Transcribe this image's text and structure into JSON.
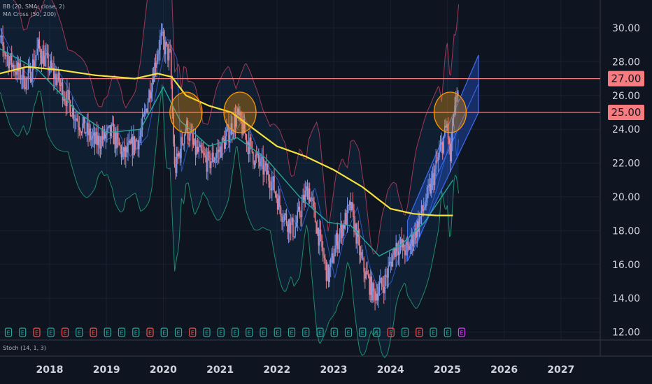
{
  "indicators": {
    "bb": "BB (20, SMA, close, 2)",
    "ma_cross": "MA Cross (50, 200)",
    "stoch": "Stoch (14, 1, 3)"
  },
  "chart_data": {
    "type": "candlestick",
    "title": "",
    "x_ticks": [
      "2018",
      "2019",
      "2020",
      "2021",
      "2022",
      "2023",
      "2024",
      "2025",
      "2026",
      "2027"
    ],
    "y_ticks": [
      "12.00",
      "14.00",
      "16.00",
      "18.00",
      "20.00",
      "22.00",
      "24.00",
      "26.00",
      "28.00",
      "30.00"
    ],
    "ylim": [
      12,
      31.5
    ],
    "horizontal_levels": [
      {
        "label": "27.00",
        "value": 27.0
      },
      {
        "label": "25.00",
        "value": 25.0
      }
    ],
    "price_path": [
      {
        "t": 2017.0,
        "v": 30.0
      },
      {
        "t": 2017.3,
        "v": 28.0
      },
      {
        "t": 2017.6,
        "v": 26.8
      },
      {
        "t": 2017.8,
        "v": 28.8
      },
      {
        "t": 2018.2,
        "v": 26.5
      },
      {
        "t": 2018.5,
        "v": 24.5
      },
      {
        "t": 2018.8,
        "v": 23.2
      },
      {
        "t": 2019.1,
        "v": 23.8
      },
      {
        "t": 2019.3,
        "v": 22.4
      },
      {
        "t": 2019.6,
        "v": 23.6
      },
      {
        "t": 2019.8,
        "v": 27.0
      },
      {
        "t": 2019.95,
        "v": 29.4
      },
      {
        "t": 2020.12,
        "v": 28.2
      },
      {
        "t": 2020.2,
        "v": 21.5
      },
      {
        "t": 2020.4,
        "v": 24.2
      },
      {
        "t": 2020.55,
        "v": 22.8
      },
      {
        "t": 2020.8,
        "v": 22.0
      },
      {
        "t": 2021.0,
        "v": 22.8
      },
      {
        "t": 2021.3,
        "v": 24.8
      },
      {
        "t": 2021.6,
        "v": 22.4
      },
      {
        "t": 2021.9,
        "v": 21.0
      },
      {
        "t": 2022.1,
        "v": 19.0
      },
      {
        "t": 2022.3,
        "v": 18.0
      },
      {
        "t": 2022.55,
        "v": 20.6
      },
      {
        "t": 2022.75,
        "v": 17.5
      },
      {
        "t": 2022.9,
        "v": 15.2
      },
      {
        "t": 2023.05,
        "v": 17.4
      },
      {
        "t": 2023.3,
        "v": 19.4
      },
      {
        "t": 2023.5,
        "v": 16.0
      },
      {
        "t": 2023.7,
        "v": 14.2
      },
      {
        "t": 2023.9,
        "v": 15.0
      },
      {
        "t": 2024.1,
        "v": 17.2
      },
      {
        "t": 2024.3,
        "v": 16.8
      },
      {
        "t": 2024.5,
        "v": 18.5
      },
      {
        "t": 2024.7,
        "v": 20.5
      },
      {
        "t": 2024.9,
        "v": 23.0
      },
      {
        "t": 2025.0,
        "v": 24.3
      },
      {
        "t": 2025.05,
        "v": 22.0
      },
      {
        "t": 2025.12,
        "v": 25.3
      },
      {
        "t": 2025.2,
        "v": 25.8
      }
    ],
    "ma200": [
      {
        "t": 2017.0,
        "v": 27.2
      },
      {
        "t": 2017.6,
        "v": 27.7
      },
      {
        "t": 2018.2,
        "v": 27.5
      },
      {
        "t": 2018.8,
        "v": 27.2
      },
      {
        "t": 2019.5,
        "v": 27.0
      },
      {
        "t": 2019.9,
        "v": 27.3
      },
      {
        "t": 2020.15,
        "v": 27.1
      },
      {
        "t": 2020.4,
        "v": 26.0
      },
      {
        "t": 2020.8,
        "v": 25.4
      },
      {
        "t": 2021.2,
        "v": 25.0
      },
      {
        "t": 2021.6,
        "v": 24.0
      },
      {
        "t": 2022.0,
        "v": 23.0
      },
      {
        "t": 2022.5,
        "v": 22.4
      },
      {
        "t": 2023.0,
        "v": 21.6
      },
      {
        "t": 2023.5,
        "v": 20.6
      },
      {
        "t": 2024.0,
        "v": 19.3
      },
      {
        "t": 2024.4,
        "v": 19.0
      },
      {
        "t": 2024.8,
        "v": 18.9
      },
      {
        "t": 2025.1,
        "v": 18.9
      }
    ],
    "ma50": [
      {
        "t": 2017.0,
        "v": 29.0
      },
      {
        "t": 2017.8,
        "v": 27.5
      },
      {
        "t": 2018.5,
        "v": 25.0
      },
      {
        "t": 2019.0,
        "v": 23.8
      },
      {
        "t": 2019.6,
        "v": 24.0
      },
      {
        "t": 2020.0,
        "v": 26.5
      },
      {
        "t": 2020.3,
        "v": 24.5
      },
      {
        "t": 2020.8,
        "v": 23.0
      },
      {
        "t": 2021.3,
        "v": 23.5
      },
      {
        "t": 2021.8,
        "v": 22.3
      },
      {
        "t": 2022.4,
        "v": 20.0
      },
      {
        "t": 2022.9,
        "v": 18.5
      },
      {
        "t": 2023.3,
        "v": 18.3
      },
      {
        "t": 2023.8,
        "v": 16.5
      },
      {
        "t": 2024.2,
        "v": 17.2
      },
      {
        "t": 2024.6,
        "v": 18.5
      },
      {
        "t": 2025.0,
        "v": 20.5
      },
      {
        "t": 2025.1,
        "v": 21.0
      }
    ],
    "channel": {
      "lower_start": [
        2024.3,
        16.2
      ],
      "lower_end": [
        2025.55,
        25.0
      ],
      "upper_start": [
        2024.3,
        18.6
      ],
      "upper_end": [
        2025.55,
        28.4
      ]
    },
    "highlight_circles": [
      {
        "t": 2020.4,
        "v": 25.0
      },
      {
        "t": 2021.35,
        "v": 25.0
      },
      {
        "t": 2025.05,
        "v": 25.0
      }
    ],
    "earnings_markers": [
      "green",
      "green",
      "red",
      "green",
      "red",
      "green",
      "red",
      "green",
      "green",
      "green",
      "red",
      "green",
      "green",
      "red",
      "green",
      "green",
      "green",
      "green",
      "green",
      "green",
      "green",
      "green",
      "green",
      "green",
      "green",
      "green",
      "green",
      "red",
      "green",
      "red",
      "green",
      "green",
      "purple"
    ]
  }
}
